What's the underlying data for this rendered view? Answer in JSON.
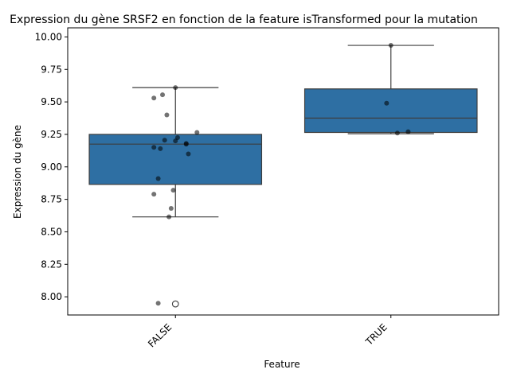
{
  "chart_data": {
    "type": "box",
    "title": "Expression du gène SRSF2 en fonction de la feature isTransformed pour la mutation",
    "xlabel": "Feature",
    "ylabel": "Expression du gène",
    "ylim": [
      7.86,
      10.07
    ],
    "yticks": [
      8.0,
      8.25,
      8.5,
      8.75,
      9.0,
      9.25,
      9.5,
      9.75,
      10.0
    ],
    "ytick_labels": [
      "8.00",
      "8.25",
      "8.50",
      "8.75",
      "9.00",
      "9.25",
      "9.50",
      "9.75",
      "10.00"
    ],
    "categories": [
      "FALSE",
      "TRUE"
    ],
    "grid": false,
    "box_color": "#2e6fa3",
    "point_color": "#000000",
    "boxes": [
      {
        "category": "FALSE",
        "q1": 8.865,
        "median": 9.175,
        "q3": 9.25,
        "whisker_low": 8.615,
        "whisker_high": 9.61,
        "outliers": [
          7.945
        ]
      },
      {
        "category": "TRUE",
        "q1": 9.265,
        "median": 9.375,
        "q3": 9.6,
        "whisker_low": 9.255,
        "whisker_high": 9.935,
        "outliers": []
      }
    ],
    "points": [
      {
        "category": "FALSE",
        "jitter": 0.0,
        "y": 9.61
      },
      {
        "category": "FALSE",
        "jitter": -0.06,
        "y": 9.555
      },
      {
        "category": "FALSE",
        "jitter": -0.1,
        "y": 9.53
      },
      {
        "category": "FALSE",
        "jitter": -0.04,
        "y": 9.4
      },
      {
        "category": "FALSE",
        "jitter": 0.1,
        "y": 9.265
      },
      {
        "category": "FALSE",
        "jitter": 0.01,
        "y": 9.225
      },
      {
        "category": "FALSE",
        "jitter": -0.05,
        "y": 9.205
      },
      {
        "category": "FALSE",
        "jitter": 0.0,
        "y": 9.2
      },
      {
        "category": "FALSE",
        "jitter": 0.05,
        "y": 9.18
      },
      {
        "category": "FALSE",
        "jitter": 0.05,
        "y": 9.175
      },
      {
        "category": "FALSE",
        "jitter": -0.1,
        "y": 9.15
      },
      {
        "category": "FALSE",
        "jitter": -0.07,
        "y": 9.14
      },
      {
        "category": "FALSE",
        "jitter": 0.06,
        "y": 9.1
      },
      {
        "category": "FALSE",
        "jitter": -0.08,
        "y": 8.91
      },
      {
        "category": "FALSE",
        "jitter": -0.01,
        "y": 8.82
      },
      {
        "category": "FALSE",
        "jitter": -0.1,
        "y": 8.79
      },
      {
        "category": "FALSE",
        "jitter": -0.02,
        "y": 8.68
      },
      {
        "category": "FALSE",
        "jitter": -0.03,
        "y": 8.615
      },
      {
        "category": "FALSE",
        "jitter": -0.08,
        "y": 7.95
      },
      {
        "category": "TRUE",
        "jitter": 0.0,
        "y": 9.935
      },
      {
        "category": "TRUE",
        "jitter": -0.02,
        "y": 9.49
      },
      {
        "category": "TRUE",
        "jitter": 0.08,
        "y": 9.27
      },
      {
        "category": "TRUE",
        "jitter": 0.03,
        "y": 9.26
      }
    ]
  }
}
